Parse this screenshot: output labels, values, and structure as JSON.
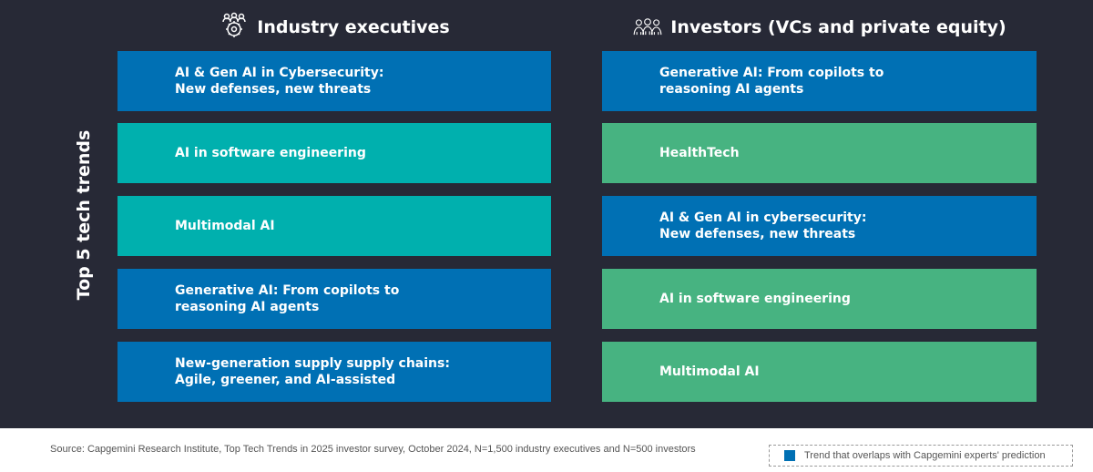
{
  "side_label": "Top 5 tech trends",
  "colors": {
    "background": "#272936",
    "overlap_blue": "#0070b4",
    "teal": "#00b0ae",
    "green": "#47b381"
  },
  "left_column": {
    "title": "Industry executives",
    "icon": "people-gear-icon",
    "items": [
      {
        "text": "AI & Gen AI in Cybersecurity:\nNew defenses, new threats",
        "color": "#0070b4"
      },
      {
        "text": "AI in software engineering",
        "color": "#00b0ae"
      },
      {
        "text": "Multimodal AI",
        "color": "#00b0ae"
      },
      {
        "text": "Generative AI: From copilots to\nreasoning AI agents",
        "color": "#0070b4"
      },
      {
        "text": "New-generation supply supply chains:\nAgile, greener, and AI-assisted",
        "color": "#0070b4"
      }
    ]
  },
  "right_column": {
    "title": "Investors (VCs and private equity)",
    "icon": "people-group-icon",
    "items": [
      {
        "text": "Generative AI: From copilots to\nreasoning AI agents",
        "color": "#0070b4"
      },
      {
        "text": "HealthTech",
        "color": "#47b381"
      },
      {
        "text": "AI & Gen AI in cybersecurity:\nNew defenses, new threats",
        "color": "#0070b4"
      },
      {
        "text": "AI in software engineering",
        "color": "#47b381"
      },
      {
        "text": "Multimodal AI",
        "color": "#47b381"
      }
    ]
  },
  "footer": {
    "source": "Source: Capgemini Research Institute, Top Tech Trends in 2025 investor survey, October 2024, N=1,500 industry executives and N=500 investors",
    "legend_text": "Trend that overlaps with Capgemini experts' prediction",
    "legend_color": "#0070b4"
  }
}
